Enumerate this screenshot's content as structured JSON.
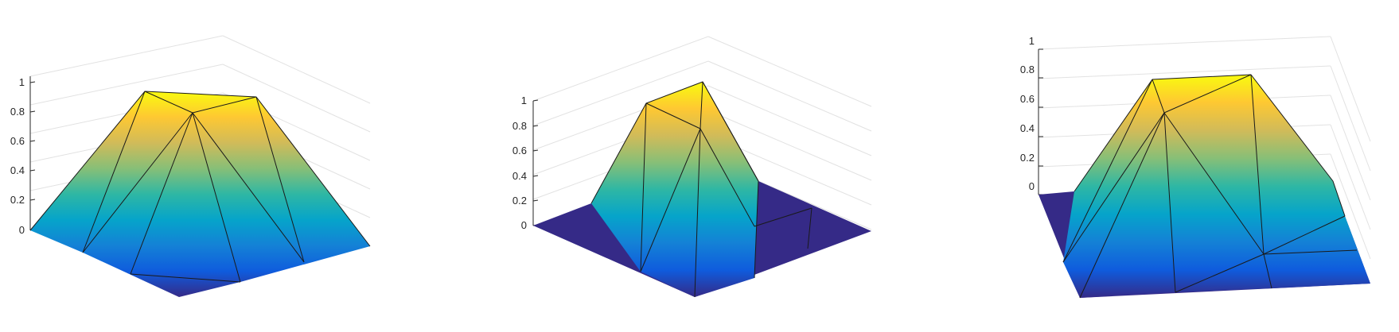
{
  "chart_data": [
    {
      "type": "surface",
      "zlim": [
        0,
        1
      ],
      "z_ticks": [
        "0",
        "0.2",
        "0.4",
        "0.6",
        "0.8",
        "1"
      ],
      "grid": true,
      "colormap": [
        "#352a87",
        "#0f5cdd",
        "#1481d6",
        "#06a4ca",
        "#2eb7a4",
        "#87bf77",
        "#d1bb59",
        "#fec832",
        "#f9fb0e"
      ],
      "peak_value": 1,
      "base_value": 0
    },
    {
      "type": "surface",
      "zlim": [
        0,
        1
      ],
      "z_ticks": [
        "0",
        "0.2",
        "0.4",
        "0.6",
        "0.8",
        "1"
      ],
      "grid": true,
      "colormap": [
        "#352a87",
        "#0f5cdd",
        "#1481d6",
        "#06a4ca",
        "#2eb7a4",
        "#87bf77",
        "#d1bb59",
        "#fec832",
        "#f9fb0e"
      ],
      "peak_value": 1,
      "base_value": 0
    },
    {
      "type": "surface",
      "zlim": [
        0,
        1
      ],
      "z_ticks": [
        "0",
        "0.2",
        "0.4",
        "0.6",
        "0.8",
        "1"
      ],
      "grid": true,
      "colormap": [
        "#352a87",
        "#0f5cdd",
        "#1481d6",
        "#06a4ca",
        "#2eb7a4",
        "#87bf77",
        "#d1bb59",
        "#fec832",
        "#f9fb0e"
      ],
      "peak_value": 1,
      "base_value": 0
    }
  ]
}
